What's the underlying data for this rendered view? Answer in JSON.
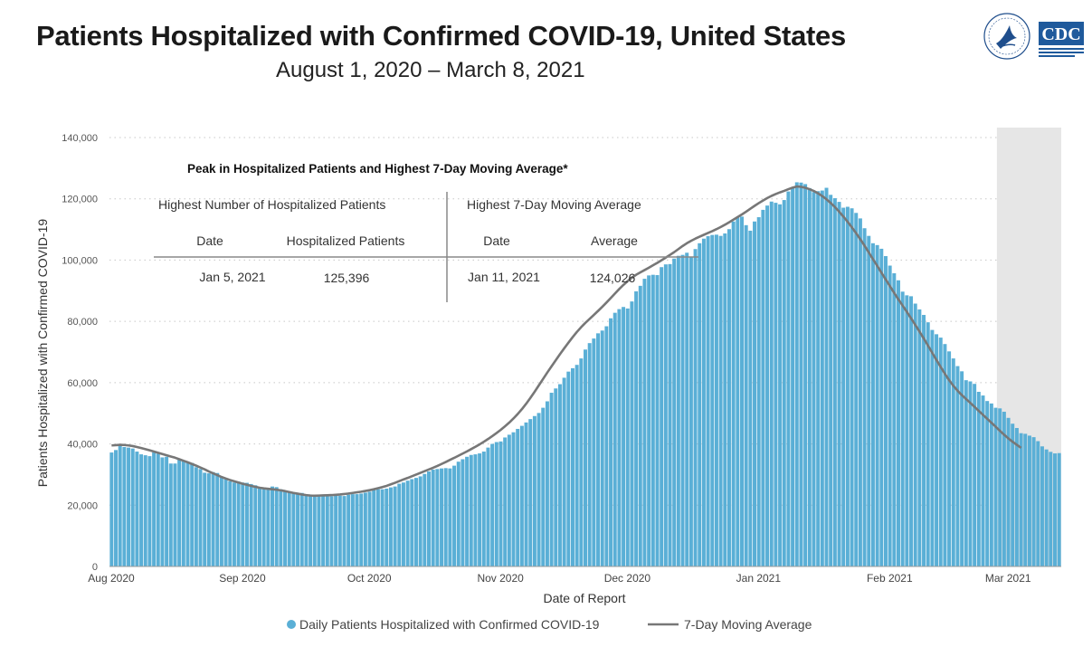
{
  "title": "Patients Hospitalized with Confirmed COVID-19, United States",
  "subtitle": "August 1, 2020 – March 8, 2021",
  "logos": {
    "hhs": "hhs-seal",
    "cdc_text": "CDC"
  },
  "peak_table": {
    "title": "Peak in Hospitalized Patients and Highest 7-Day Moving Average*",
    "left_header": "Highest Number of Hospitalized Patients",
    "right_header": "Highest 7-Day Moving Average",
    "left_columns": [
      "Date",
      "Hospitalized Patients"
    ],
    "right_columns": [
      "Date",
      "Average"
    ],
    "left_values": [
      "Jan 5, 2021",
      "125,396"
    ],
    "right_values": [
      "Jan 11, 2021",
      "124,026"
    ]
  },
  "chart_data": {
    "type": "bar",
    "title": "Patients Hospitalized with Confirmed COVID-19, United States",
    "xlabel": "Date of Report",
    "ylabel": "Patients Hospitalized with Confirmed COVID-19",
    "ylim": [
      0,
      140000
    ],
    "yticks": [
      0,
      20000,
      40000,
      60000,
      80000,
      100000,
      120000,
      140000
    ],
    "ytick_labels": [
      "0",
      "20,000",
      "40,000",
      "60,000",
      "80,000",
      "100,000",
      "120,000",
      "140,000"
    ],
    "xtick_labels": [
      "Aug 2020",
      "Sep 2020",
      "Oct 2020",
      "Nov 2020",
      "Dec 2020",
      "Jan 2021",
      "Feb 2021",
      "Mar 2021"
    ],
    "xtick_day_index": [
      0,
      31,
      61,
      92,
      122,
      153,
      184,
      212
    ],
    "grid": "horizontal dotted",
    "shaded_region_start_day": 210,
    "series": [
      {
        "name": "Daily Patients Hospitalized with Confirmed COVID-19",
        "type": "bar",
        "color": "#5aafd6",
        "values": [
          37200,
          38000,
          39500,
          39000,
          38800,
          38500,
          37500,
          36600,
          36300,
          36000,
          37200,
          36800,
          35600,
          35800,
          33600,
          33600,
          34900,
          34400,
          34000,
          33800,
          32400,
          31800,
          30600,
          30400,
          30800,
          30500,
          29100,
          28600,
          27800,
          27400,
          27700,
          27400,
          27300,
          26900,
          26500,
          25500,
          25400,
          25700,
          26100,
          25900,
          25200,
          24800,
          24300,
          23800,
          23700,
          24000,
          23400,
          23500,
          23300,
          23300,
          23400,
          23000,
          22900,
          23100,
          23100,
          23000,
          23400,
          23600,
          23600,
          23800,
          24100,
          24400,
          25000,
          25200,
          25200,
          25400,
          25800,
          26100,
          27000,
          27400,
          28000,
          28500,
          28900,
          29400,
          30200,
          31000,
          31600,
          31800,
          32000,
          32100,
          32000,
          32900,
          34200,
          35000,
          35800,
          36400,
          36600,
          36900,
          37500,
          38800,
          40000,
          40600,
          40800,
          42100,
          43000,
          43800,
          44900,
          45900,
          47000,
          48100,
          49100,
          50100,
          51800,
          53900,
          56700,
          58100,
          59500,
          61600,
          63600,
          64700,
          65800,
          67900,
          70800,
          72900,
          74400,
          76100,
          77000,
          78400,
          81000,
          82800,
          84000,
          84700,
          84200,
          86500,
          89800,
          91600,
          93900,
          95000,
          95200,
          95100,
          97700,
          98600,
          98700,
          100500,
          101400,
          101700,
          102400,
          101100,
          103600,
          105500,
          107000,
          107800,
          108200,
          108300,
          107900,
          108700,
          110100,
          112600,
          113900,
          114200,
          111400,
          109600,
          112600,
          114000,
          116400,
          117800,
          119100,
          118700,
          118200,
          119600,
          122400,
          123500,
          125396,
          125300,
          124800,
          123500,
          122200,
          122500,
          122700,
          123600,
          121300,
          120200,
          119000,
          117100,
          117400,
          116900,
          115400,
          113600,
          110400,
          107900,
          105500,
          104900,
          103700,
          101300,
          98200,
          95700,
          93400,
          89700,
          88500,
          88200,
          85800,
          83900,
          82100,
          79700,
          77200,
          75800,
          74700,
          72600,
          70200,
          67900,
          65400,
          63700,
          60800,
          60400,
          59600,
          57000,
          55800,
          54000,
          53200,
          51800,
          51600,
          50500,
          48500,
          46600,
          45200,
          43500,
          43300,
          42700,
          42200,
          40900,
          39200,
          38200,
          37400,
          36900,
          37000
        ]
      },
      {
        "name": "7-Day Moving Average",
        "type": "line",
        "color": "#777777",
        "values": [
          39500,
          39600,
          39700,
          39650,
          39500,
          39300,
          39000,
          38650,
          38300,
          37900,
          37500,
          37100,
          36700,
          36300,
          35900,
          35500,
          35000,
          34500,
          34000,
          33450,
          32900,
          32300,
          31700,
          31000,
          30400,
          29800,
          29200,
          28700,
          28200,
          27800,
          27400,
          27000,
          26650,
          26300,
          26000,
          25700,
          25500,
          25350,
          25200,
          25050,
          24850,
          24600,
          24300,
          24000,
          23750,
          23500,
          23300,
          23150,
          23100,
          23150,
          23200,
          23250,
          23300,
          23400,
          23500,
          23650,
          23800,
          24000,
          24200,
          24400,
          24650,
          24900,
          25200,
          25550,
          25900,
          26300,
          26800,
          27300,
          27850,
          28400,
          28900,
          29450,
          30000,
          30550,
          31100,
          31650,
          32200,
          32800,
          33450,
          34100,
          34800,
          35450,
          36150,
          36850,
          37550,
          38300,
          39050,
          39850,
          40700,
          41600,
          42550,
          43550,
          44600,
          45750,
          46950,
          48300,
          49750,
          51350,
          53100,
          55000,
          57000,
          59100,
          61200,
          63300,
          65300,
          67300,
          69300,
          71200,
          73050,
          74850,
          76550,
          78100,
          79500,
          80800,
          82100,
          83400,
          84750,
          86150,
          87600,
          89100,
          90550,
          91900,
          93150,
          94250,
          95200,
          96000,
          96750,
          97500,
          98300,
          99100,
          99950,
          100800,
          101700,
          102600,
          103600,
          104600,
          105500,
          106300,
          107000,
          107650,
          108250,
          108850,
          109450,
          110100,
          110800,
          111550,
          112350,
          113200,
          114050,
          114900,
          115800,
          116750,
          117700,
          118600,
          119450,
          120250,
          120950,
          121550,
          122100,
          122600,
          123150,
          123650,
          124026,
          123900,
          123600,
          123150,
          122550,
          121800,
          120900,
          119850,
          118650,
          117300,
          115800,
          114200,
          112500,
          110700,
          108800,
          106800,
          104700,
          102500,
          100300,
          98100,
          95900,
          93700,
          91500,
          89300,
          87200,
          85150,
          83100,
          81000,
          78850,
          76650,
          74400,
          72100,
          69750,
          67400,
          65100,
          62900,
          60800,
          58950,
          57350,
          55950,
          54650,
          53400,
          52100,
          50800,
          49500,
          48200,
          46900,
          45600,
          44300,
          43000,
          41800,
          40700,
          39700,
          38700
        ]
      }
    ]
  },
  "legend": {
    "bar_label": "Daily Patients Hospitalized with Confirmed COVID-19",
    "line_label": "7-Day Moving Average"
  }
}
